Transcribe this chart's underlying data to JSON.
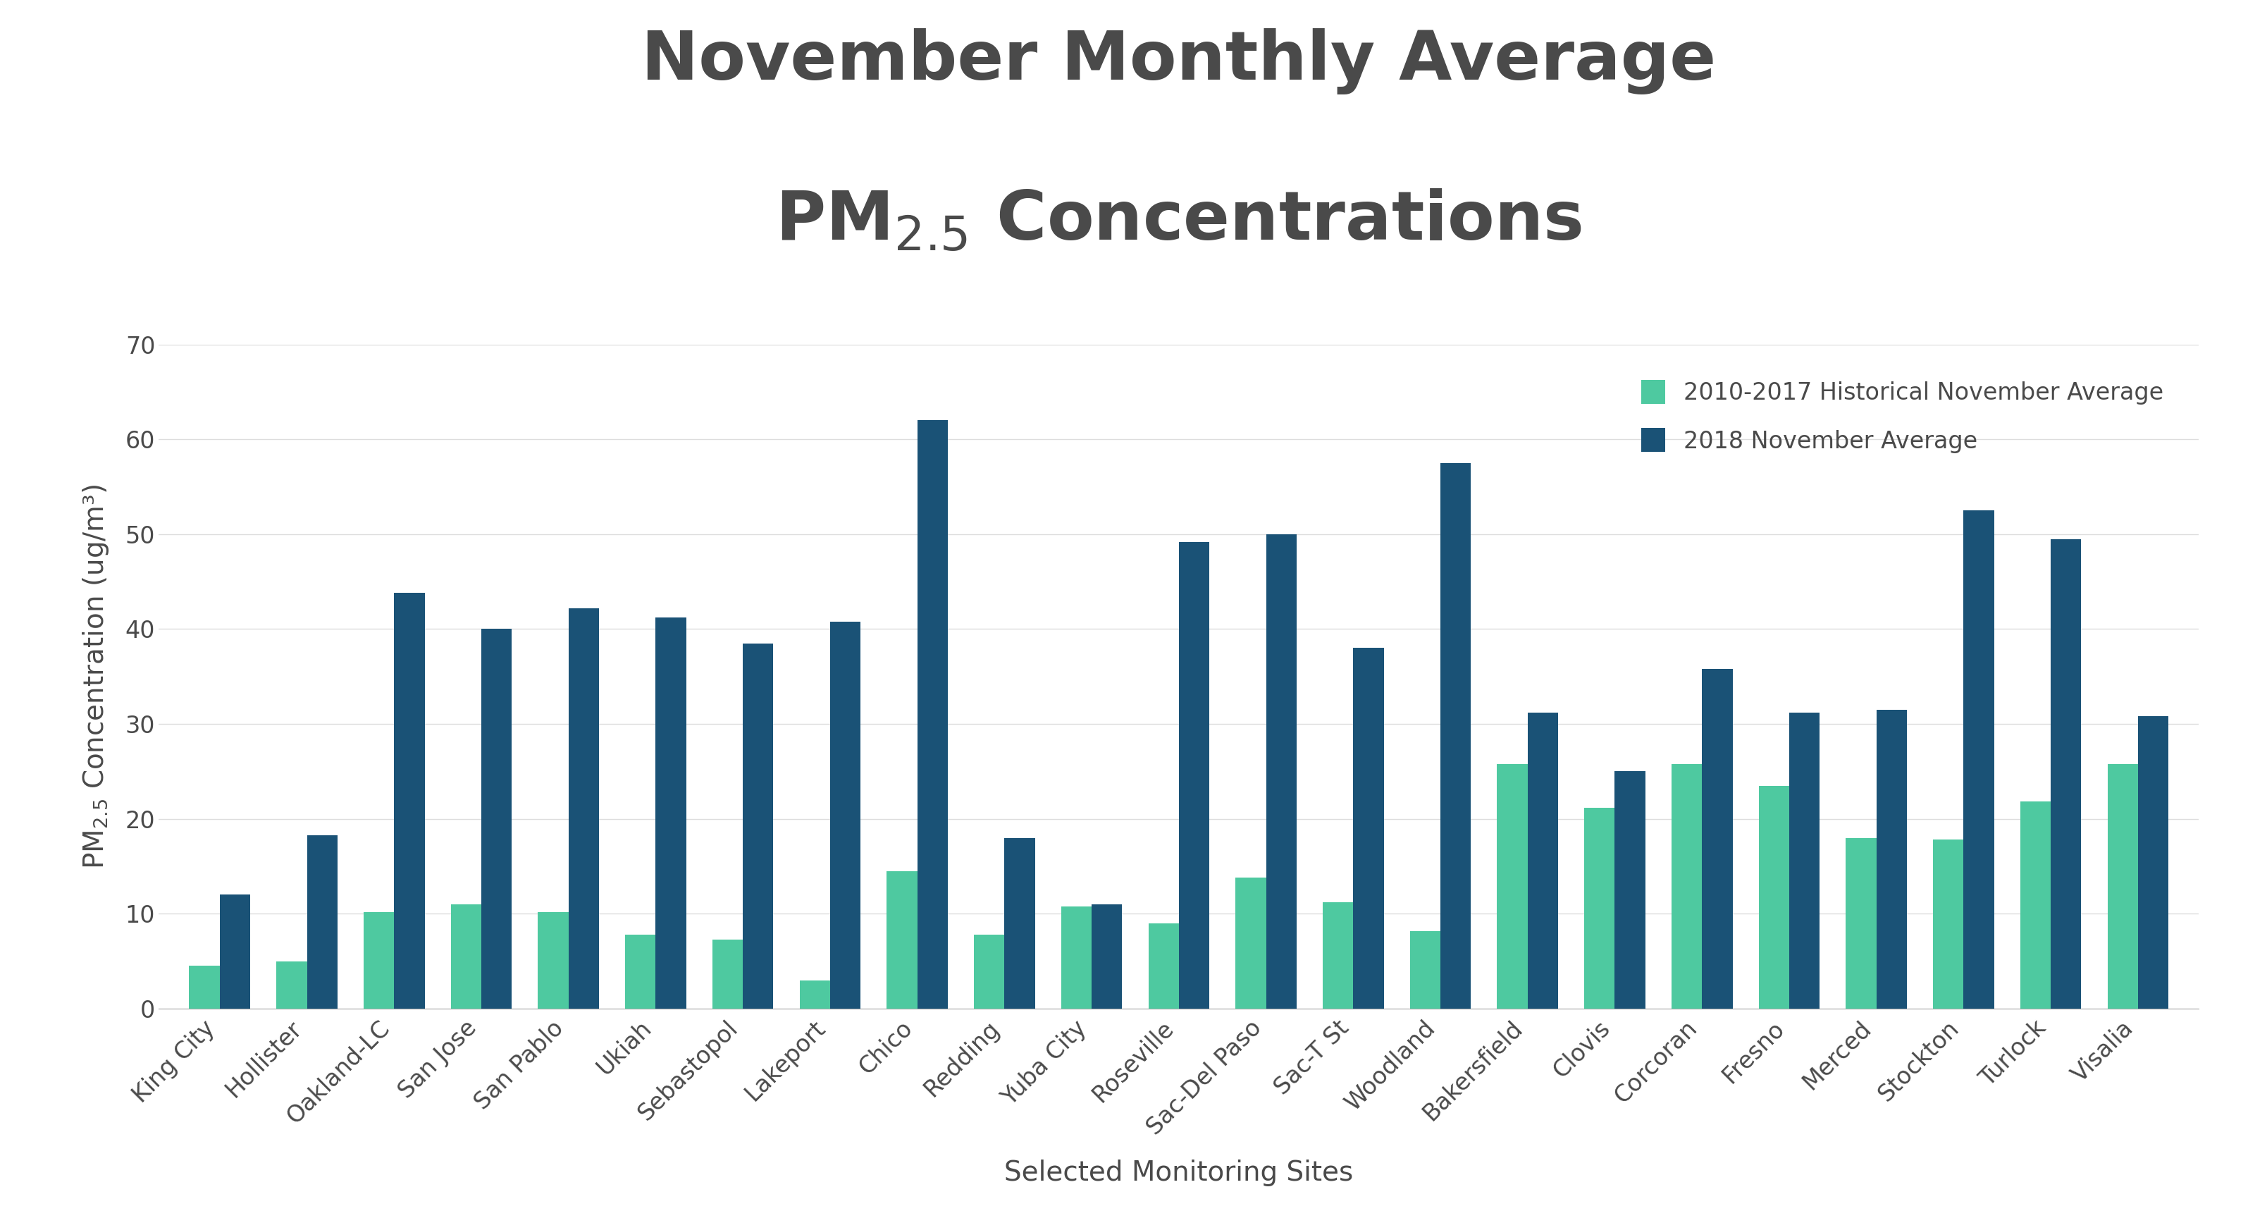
{
  "title_line1": "November Monthly Average",
  "title_line2": "PM$_{2.5}$ Concentrations",
  "xlabel": "Selected Monitoring Sites",
  "ylim": [
    0,
    70
  ],
  "yticks": [
    0,
    10,
    20,
    30,
    40,
    50,
    60,
    70
  ],
  "legend_labels": [
    "2010-2017 Historical November Average",
    "2018 November Average"
  ],
  "color_historical": "#4ec9a0",
  "color_2018": "#1a5276",
  "background_color": "#ffffff",
  "categories": [
    "King City",
    "Hollister",
    "Oakland-LC",
    "San Jose",
    "San Pablo",
    "Ukiah",
    "Sebastopol",
    "Lakeport",
    "Chico",
    "Redding",
    "Yuba City",
    "Roseville",
    "Sac-Del Paso",
    "Sac-T St",
    "Woodland",
    "Bakersfield",
    "Clovis",
    "Corcoran",
    "Fresno",
    "Merced",
    "Stockton",
    "Turlock",
    "Visalia"
  ],
  "historical_values": [
    4.5,
    5.0,
    10.2,
    11.0,
    10.2,
    7.8,
    7.3,
    3.0,
    14.5,
    7.8,
    10.8,
    9.0,
    13.8,
    11.2,
    8.2,
    25.8,
    21.2,
    25.8,
    23.5,
    18.0,
    17.8,
    21.8,
    25.8
  ],
  "values_2018": [
    12.0,
    18.3,
    43.8,
    40.0,
    42.2,
    41.2,
    38.5,
    40.8,
    62.0,
    18.0,
    11.0,
    49.2,
    50.0,
    38.0,
    57.5,
    31.2,
    25.0,
    35.8,
    31.2,
    31.5,
    52.5,
    49.5,
    30.8
  ],
  "title_fontsize": 70,
  "axis_label_fontsize": 28,
  "tick_fontsize": 24,
  "legend_fontsize": 24,
  "bar_width": 0.35,
  "title_color": "#4a4a4a",
  "axis_color": "#4a4a4a",
  "tick_color": "#4a4a4a"
}
